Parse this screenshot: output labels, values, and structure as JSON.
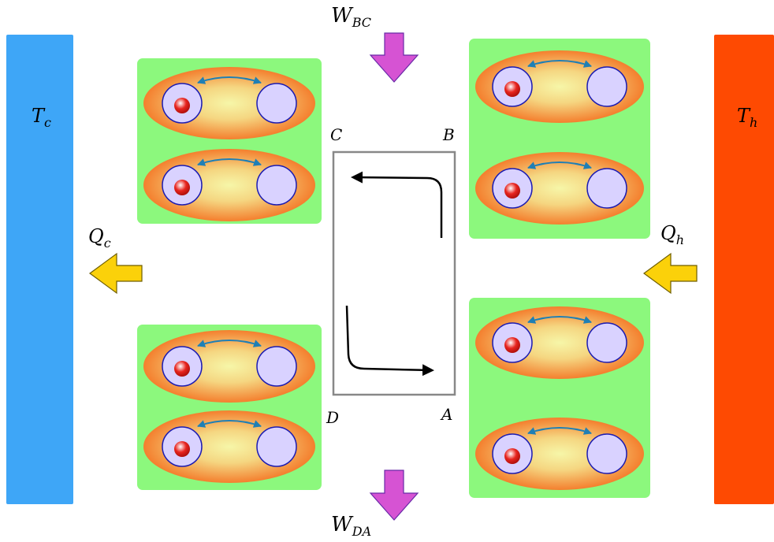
{
  "reservoirs": {
    "cold": {
      "symbol": "T",
      "subscript": "c",
      "color": "#3ea6f7"
    },
    "hot": {
      "symbol": "T",
      "subscript": "h",
      "color": "#fe4a02"
    }
  },
  "heat": {
    "cold": {
      "symbol": "Q",
      "subscript": "c"
    },
    "hot": {
      "symbol": "Q",
      "subscript": "h"
    },
    "arrow_color": "#fbd10a"
  },
  "work": {
    "compression": {
      "symbol": "W",
      "subscript": "BC"
    },
    "expansion": {
      "symbol": "W",
      "subscript": "DA"
    },
    "arrow_color": "#d653d3"
  },
  "cycle": {
    "corners": {
      "top_left": "C",
      "top_right": "B",
      "bottom_left": "D",
      "bottom_right": "A"
    }
  },
  "colors": {
    "panel": "#8cf87d",
    "well_outer": "#f47f2e",
    "well_inner": "#f6f6a8",
    "site_fill": "#d9d2ff",
    "site_stroke": "#1b1bb2",
    "particle": "#e8251f",
    "hop_arrow": "#1f7fb5"
  }
}
